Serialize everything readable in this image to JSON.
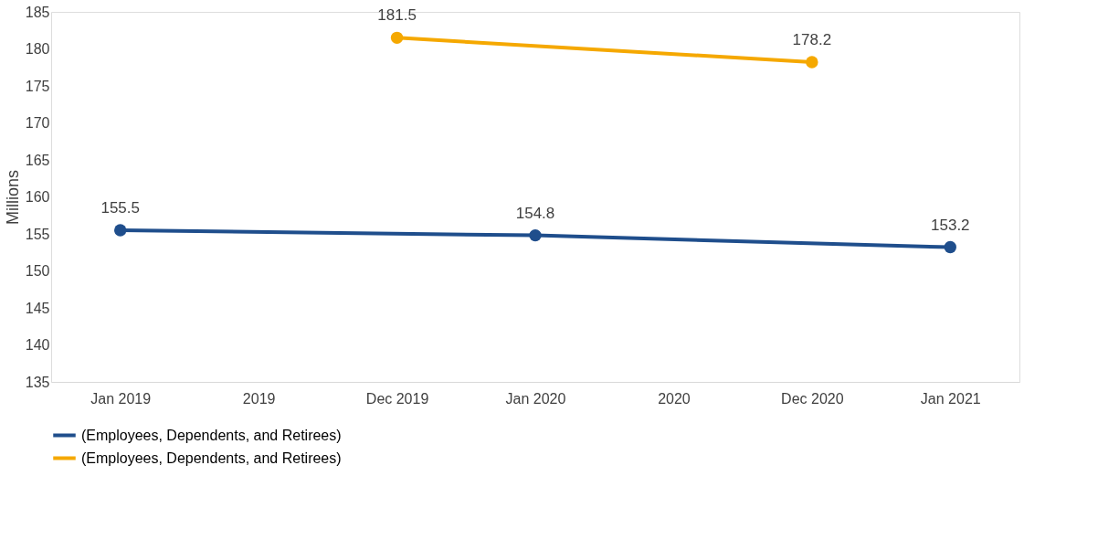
{
  "chart_data": {
    "type": "line",
    "ylabel": "Millions",
    "categories": [
      "Jan 2019",
      "2019",
      "Dec 2019",
      "Jan 2020",
      "2020",
      "Dec 2020",
      "Jan 2021"
    ],
    "series": [
      {
        "name": "(Employees, Dependents, and Retirees)",
        "color": "#1f4e8c",
        "values": [
          155.5,
          null,
          null,
          154.8,
          null,
          null,
          153.2
        ]
      },
      {
        "name": "(Employees, Dependents, and Retirees)",
        "color": "#f5a800",
        "values": [
          null,
          null,
          181.5,
          null,
          null,
          178.2,
          null
        ]
      }
    ],
    "ylim": [
      135,
      185
    ],
    "yticks": [
      135,
      140,
      145,
      150,
      155,
      160,
      165,
      170,
      175,
      180,
      185
    ],
    "grid": false,
    "legend": "bottom",
    "marker": "circle",
    "line_style": "solid",
    "data_labels": true
  }
}
